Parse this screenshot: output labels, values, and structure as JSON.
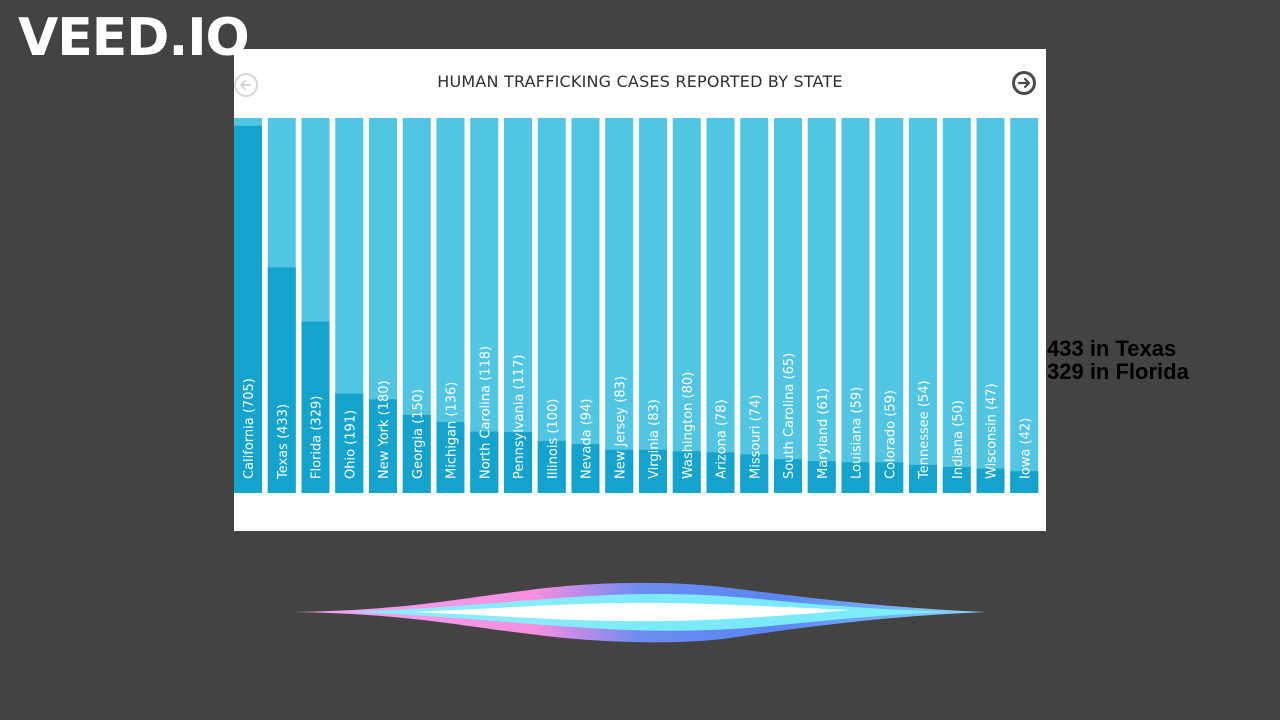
{
  "watermark": "VEED.IO",
  "chart_data": {
    "type": "bar",
    "title": "HUMAN TRAFFICKING CASES REPORTED BY STATE",
    "categories": [
      "California",
      "Texas",
      "Florida",
      "Ohio",
      "New York",
      "Georgia",
      "Michigan",
      "North Carolina",
      "Pennsylvania",
      "Illinois",
      "Nevada",
      "New Jersey",
      "Virginia",
      "Washington",
      "Arizona",
      "Missouri",
      "South Carolina",
      "Maryland",
      "Louisiana",
      "Colorado",
      "Tennessee",
      "Indiana",
      "Wisconsin",
      "Iowa"
    ],
    "values": [
      705,
      433,
      329,
      191,
      180,
      150,
      136,
      118,
      117,
      100,
      94,
      83,
      83,
      80,
      78,
      74,
      65,
      61,
      59,
      59,
      54,
      50,
      47,
      42
    ],
    "labels": [
      "California (705)",
      "Texas (433)",
      "Florida (329)",
      "Ohio (191)",
      "New York (180)",
      "Georgia (150)",
      "Michigan (136)",
      "North Carolina (118)",
      "Pennsylvania (117)",
      "Illinois (100)",
      "Nevada (94)",
      "New Jersey (83)",
      "Virginia (83)",
      "Washington (80)",
      "Arizona (78)",
      "Missouri (74)",
      "South Carolina (65)",
      "Maryland (61)",
      "Louisiana (59)",
      "Colorado (59)",
      "Tennessee (54)",
      "Indiana (50)",
      "Wisconsin (47)",
      "Iowa (42)"
    ],
    "ylim": [
      0,
      720
    ],
    "colors": {
      "bar": "#14a3cc",
      "track": "#52c5e3",
      "label": "#ffffff"
    }
  },
  "annotations": [
    "433 in Texas",
    "329 in Florida"
  ],
  "nav": {
    "prev_icon": "arrow-left-circle-icon",
    "next_icon": "arrow-right-circle-icon"
  }
}
